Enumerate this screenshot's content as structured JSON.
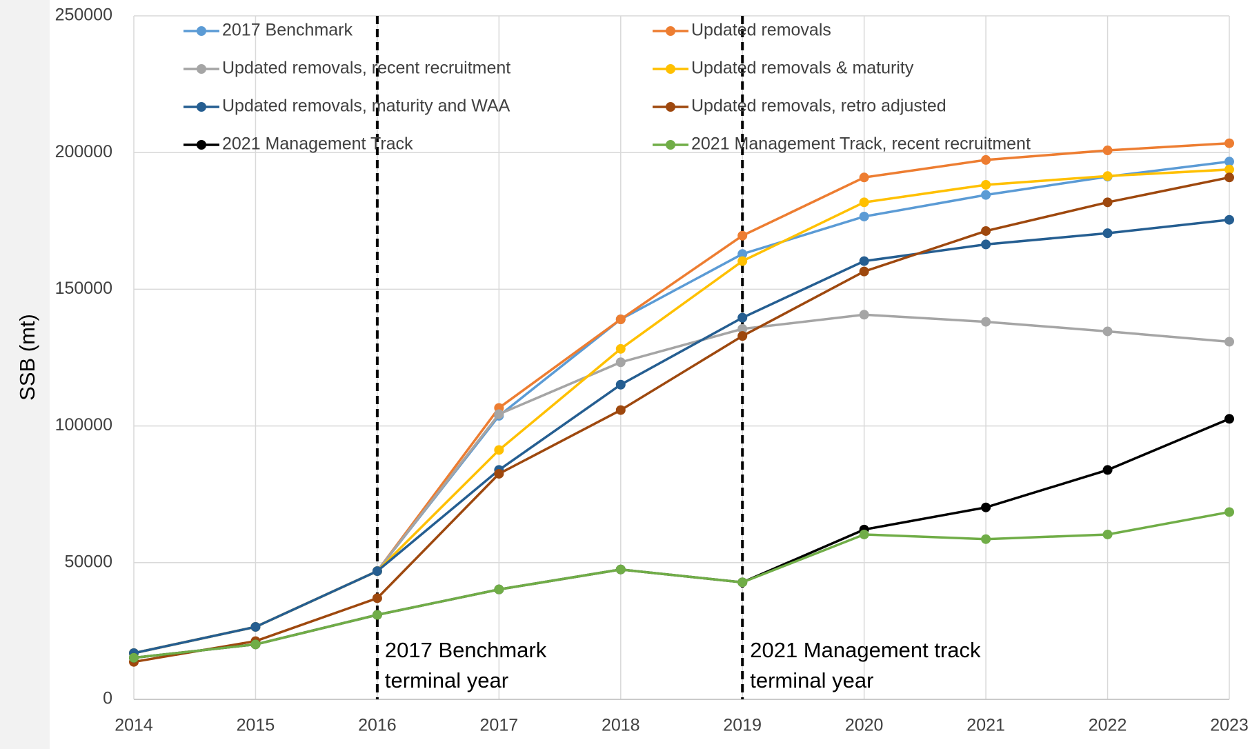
{
  "chart_data": {
    "type": "line",
    "y_label": "SSB (mt)",
    "x": [
      2014,
      2015,
      2016,
      2017,
      2018,
      2019,
      2020,
      2021,
      2022,
      2023
    ],
    "xlim": [
      2014,
      2023
    ],
    "xticks": [
      2014,
      2015,
      2016,
      2017,
      2018,
      2019,
      2020,
      2021,
      2022,
      2023
    ],
    "ylim": [
      0,
      250000
    ],
    "yticks": [
      0,
      50000,
      100000,
      150000,
      200000,
      250000
    ],
    "grid": true,
    "legend": "top",
    "series": [
      {
        "name": "2017 Benchmark",
        "color": "#5b9bd5",
        "values": [
          16900,
          26500,
          46900,
          103700,
          139000,
          162900,
          176600,
          184500,
          191200,
          196700
        ]
      },
      {
        "name": "Updated removals",
        "color": "#ed7d31",
        "values": [
          16900,
          26500,
          46900,
          106600,
          139000,
          169600,
          190900,
          197300,
          200800,
          203400
        ]
      },
      {
        "name": "Updated removals, recent recruitment",
        "color": "#a5a5a5",
        "values": [
          16900,
          26500,
          46900,
          104300,
          123300,
          135500,
          140700,
          138100,
          134600,
          130800
        ]
      },
      {
        "name": "Updated removals & maturity",
        "color": "#ffc000",
        "values": [
          16900,
          26500,
          46900,
          91200,
          128200,
          160300,
          181800,
          188200,
          191400,
          193800
        ]
      },
      {
        "name": "Updated removals, maturity and WAA",
        "color": "#255e91",
        "values": [
          16900,
          26500,
          46900,
          83900,
          115100,
          139600,
          160300,
          166400,
          170500,
          175400
        ]
      },
      {
        "name": "Updated removals, retro adjusted",
        "color": "#9e480e",
        "values": [
          13700,
          21300,
          37000,
          82500,
          105800,
          132900,
          156500,
          171300,
          181800,
          190900
        ]
      },
      {
        "name": "2021 Management Track",
        "color": "#000000",
        "values": [
          15200,
          20100,
          30900,
          40200,
          47500,
          42800,
          62100,
          70200,
          83900,
          102600
        ]
      },
      {
        "name": "2021 Management Track, recent recruitment",
        "color": "#70ad47",
        "values": [
          15200,
          20100,
          30900,
          40200,
          47500,
          42800,
          60300,
          58600,
          60300,
          68500
        ]
      }
    ],
    "annotations": [
      {
        "x": 2016,
        "lines": [
          "2017 Benchmark",
          "terminal year"
        ]
      },
      {
        "x": 2019,
        "lines": [
          "2021 Management track",
          "terminal year"
        ]
      }
    ]
  }
}
